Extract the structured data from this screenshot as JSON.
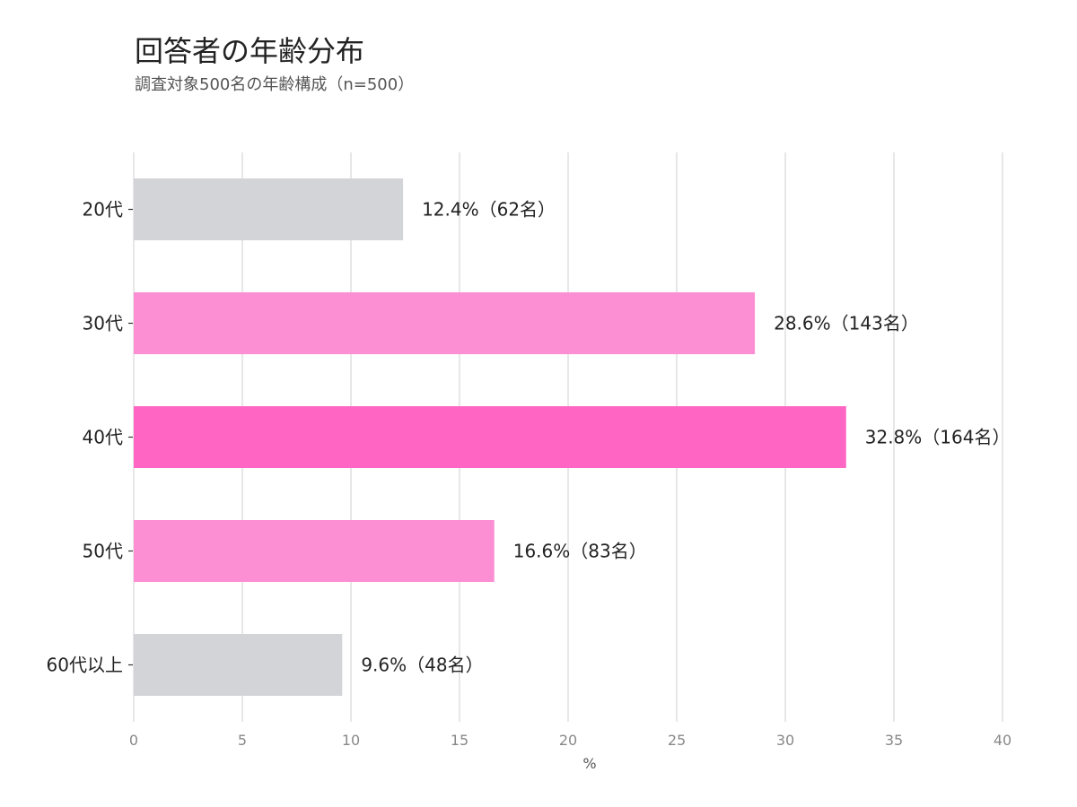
{
  "chart_data": {
    "type": "bar",
    "orientation": "horizontal",
    "title": "回答者の年齢分布",
    "subtitle": "調査対象500名の年齢構成（n=500）",
    "xlabel": "%",
    "ylabel": "",
    "xlim": [
      0,
      40
    ],
    "xticks": [
      "0",
      "5",
      "10",
      "15",
      "20",
      "25",
      "30",
      "35",
      "40"
    ],
    "grid": "vertical",
    "categories": [
      "20代",
      "30代",
      "40代",
      "50代",
      "60代以上"
    ],
    "values": [
      12.4,
      28.6,
      32.8,
      16.6,
      9.6
    ],
    "counts": [
      62,
      143,
      164,
      83,
      48
    ],
    "data_labels": [
      "12.4%（62名）",
      "28.6%（143名）",
      "32.8%（164名）",
      "16.6%（83名）",
      "9.6%（48名）"
    ],
    "colors": [
      "#d3d4d8",
      "#fc8ed3",
      "#ff66c4",
      "#fc8ed3",
      "#d3d4d8"
    ]
  }
}
